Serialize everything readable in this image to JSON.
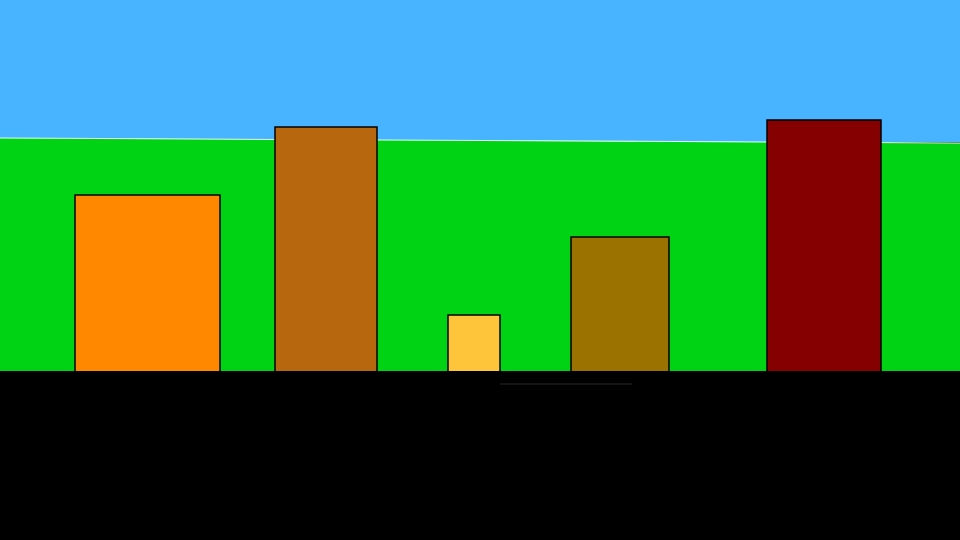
{
  "scene": {
    "colors": {
      "sky": "#48b4ff",
      "grass": "#00d314",
      "ground": "#000000",
      "outline": "#000000"
    },
    "blocks": [
      {
        "name": "orange-block",
        "color": "#ff8800"
      },
      {
        "name": "brown-block",
        "color": "#b7680e"
      },
      {
        "name": "yellow-block",
        "color": "#ffc53a"
      },
      {
        "name": "olive-block",
        "color": "#9b7200"
      },
      {
        "name": "maroon-block",
        "color": "#850000"
      }
    ]
  }
}
